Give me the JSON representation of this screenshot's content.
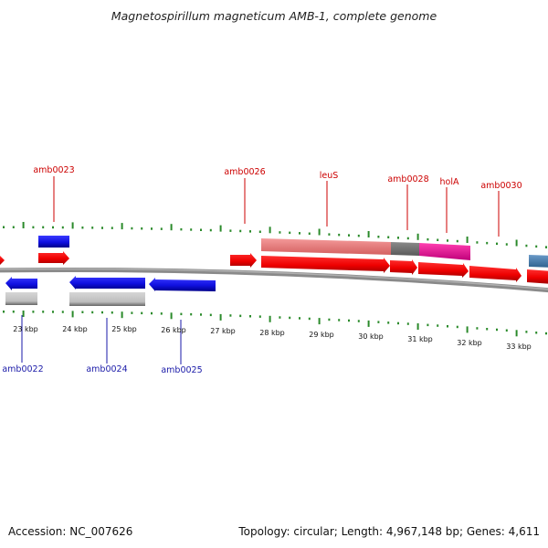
{
  "title": "Magnetospirillum magneticum AMB-1, complete genome",
  "footer": {
    "accession": "Accession: NC_007626",
    "summary": "Topology: circular; Length: 4,967,148 bp; Genes: 4,611"
  },
  "colors": {
    "forward_gene": "#ff0000",
    "reverse_gene": "#1010e0",
    "label_forward": "#cc0000",
    "label_reverse": "#1a1aa8",
    "tick_marks": "#2a8a2a",
    "backbone": "#808080",
    "feature_pink": "#f08080",
    "feature_magenta": "#ff1493",
    "feature_steelblue": "#4682b4",
    "feature_grey": "#808080"
  },
  "kbp_labels": [
    "23 kbp",
    "24 kbp",
    "25 kbp",
    "26 kbp",
    "27 kbp",
    "28 kbp",
    "29 kbp",
    "30 kbp",
    "31 kbp",
    "32 kbp",
    "33 kbp"
  ],
  "forward_gene_labels": [
    "amb0023",
    "amb0026",
    "leuS",
    "amb0028",
    "holA",
    "amb0030"
  ],
  "reverse_gene_labels": [
    "amb0022",
    "amb0024",
    "amb0025"
  ]
}
